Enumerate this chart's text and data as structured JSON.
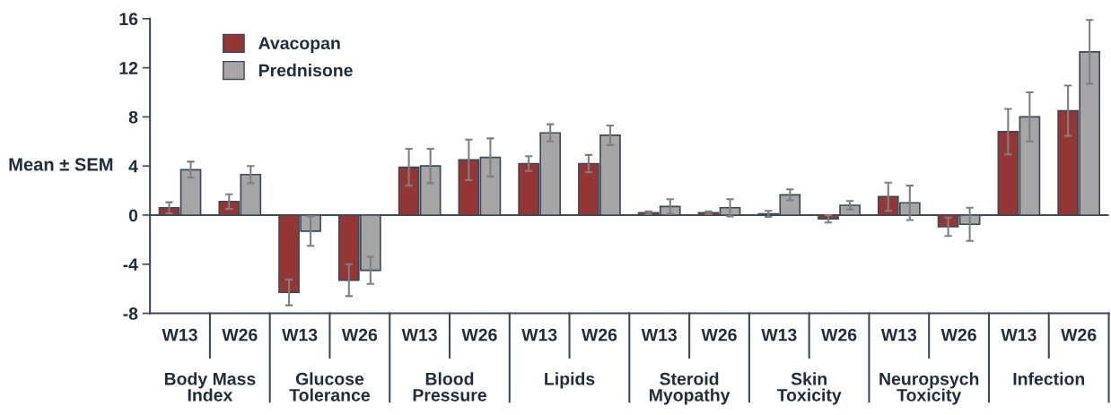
{
  "chart_data": {
    "type": "bar",
    "ylabel": "Mean ± SEM",
    "categories": [
      "W13",
      "W26",
      "W13",
      "W26",
      "W13",
      "W26",
      "W13",
      "W26",
      "W13",
      "W26",
      "W13",
      "W26",
      "W13",
      "W26",
      "W13",
      "W26"
    ],
    "annotations": [
      "Body Mass\nIndex",
      "Glucose\nTolerance",
      "Blood\nPressure",
      "Lipids",
      "Steroid\nMyopathy",
      "Skin\nToxicity",
      "Neuropsych\nToxicity",
      "Infection"
    ],
    "series": [
      {
        "name": "Avacopan",
        "color": "#943634",
        "values": [
          0.6,
          1.1,
          -6.3,
          -5.3,
          3.9,
          4.5,
          4.2,
          4.2,
          0.2,
          0.2,
          0.1,
          -0.3,
          1.5,
          -0.95,
          6.8,
          8.5
        ],
        "errors": [
          0.45,
          0.6,
          1.05,
          1.3,
          1.5,
          1.65,
          0.6,
          0.7,
          0.1,
          0.1,
          0.25,
          0.3,
          1.15,
          0.75,
          1.85,
          2.05
        ]
      },
      {
        "name": "Prednisone",
        "color": "#a6a6a6",
        "values": [
          3.7,
          3.3,
          -1.3,
          -4.5,
          4.0,
          4.7,
          6.7,
          6.5,
          0.7,
          0.6,
          1.65,
          0.8,
          1.0,
          -0.75,
          8.0,
          13.3
        ],
        "errors": [
          0.65,
          0.7,
          1.2,
          1.1,
          1.4,
          1.55,
          0.7,
          0.8,
          0.6,
          0.7,
          0.45,
          0.35,
          1.4,
          1.35,
          2.0,
          2.6
        ]
      }
    ],
    "ylim": [
      -8,
      16
    ],
    "yticks": [
      -8,
      -4,
      0,
      4,
      8,
      12,
      16
    ],
    "ref_lines": [
      {
        "axis": "y",
        "value": 0,
        "color": "#3b4a5a"
      }
    ],
    "grid": false,
    "legend": "top left"
  }
}
